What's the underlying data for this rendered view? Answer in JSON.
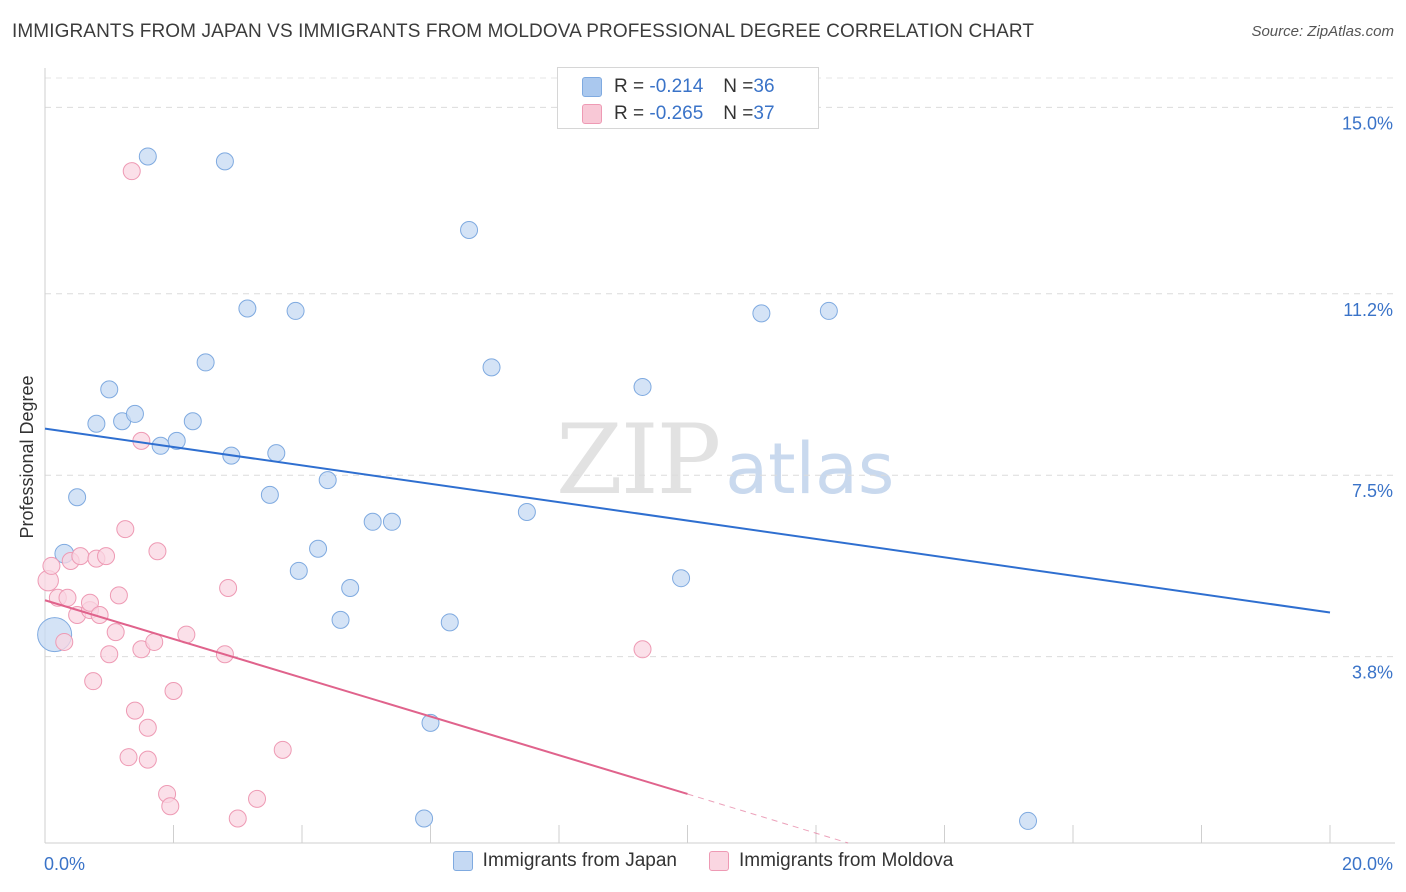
{
  "title": "IMMIGRANTS FROM JAPAN VS IMMIGRANTS FROM MOLDOVA PROFESSIONAL DEGREE CORRELATION CHART",
  "source": "Source: ZipAtlas.com",
  "watermark": {
    "zip": "ZIP",
    "atlas": "atlas"
  },
  "stats": [
    {
      "r_label": "R = ",
      "r_value": "-0.214",
      "n_label": "N = ",
      "n_value": "36",
      "color": "#aac8ee",
      "border": "#7faae0"
    },
    {
      "r_label": "R = ",
      "r_value": "-0.265",
      "n_label": "N = ",
      "n_value": "37",
      "color": "#f8c8d6",
      "border": "#ee9ab4"
    }
  ],
  "legend": [
    {
      "label": "Immigrants from Japan",
      "color": "#c5d9f3",
      "border": "#7faae0"
    },
    {
      "label": "Immigrants from Moldova",
      "color": "#fad6e1",
      "border": "#ee9ab4"
    }
  ],
  "chart_data": {
    "type": "scatter",
    "title": "IMMIGRANTS FROM JAPAN VS IMMIGRANTS FROM MOLDOVA PROFESSIONAL DEGREE CORRELATION CHART",
    "xlabel": "",
    "ylabel": "Professional Degree",
    "xlim": [
      0,
      20
    ],
    "ylim": [
      0,
      15.6
    ],
    "x_tick_labels": [
      "0.0%",
      "20.0%"
    ],
    "y_ticks": [
      3.8,
      7.5,
      11.2,
      15.0
    ],
    "y_tick_labels": [
      "3.8%",
      "7.5%",
      "11.2%",
      "15.0%"
    ],
    "grid": "horizontal dashed",
    "series": [
      {
        "name": "Immigrants from Japan",
        "color": "#c5d9f3",
        "stroke": "#7faae0",
        "line_color": "#2f6fd0",
        "trend": {
          "x": [
            0,
            20
          ],
          "y": [
            8.45,
            4.7
          ]
        },
        "points": [
          [
            0.15,
            4.25,
            2.0
          ],
          [
            0.3,
            5.9,
            1.1
          ],
          [
            0.5,
            7.05,
            1
          ],
          [
            0.8,
            8.55,
            1
          ],
          [
            1.0,
            9.25,
            1
          ],
          [
            1.2,
            8.6,
            1
          ],
          [
            1.4,
            8.75,
            1
          ],
          [
            1.6,
            14.0,
            1
          ],
          [
            1.8,
            8.1,
            1
          ],
          [
            2.05,
            8.2,
            1
          ],
          [
            2.3,
            8.6,
            1
          ],
          [
            2.5,
            9.8,
            1
          ],
          [
            2.8,
            13.9,
            1
          ],
          [
            2.9,
            7.9,
            1
          ],
          [
            3.15,
            10.9,
            1
          ],
          [
            3.5,
            7.1,
            1
          ],
          [
            3.6,
            7.95,
            1
          ],
          [
            3.9,
            10.85,
            1
          ],
          [
            3.95,
            5.55,
            1
          ],
          [
            4.25,
            6.0,
            1
          ],
          [
            4.4,
            7.4,
            1
          ],
          [
            4.6,
            4.55,
            1
          ],
          [
            4.75,
            5.2,
            1
          ],
          [
            5.1,
            6.55,
            1
          ],
          [
            5.4,
            6.55,
            1
          ],
          [
            5.9,
            0.5,
            1
          ],
          [
            6.3,
            4.5,
            1
          ],
          [
            6.6,
            12.5,
            1
          ],
          [
            6.95,
            9.7,
            1
          ],
          [
            7.5,
            6.75,
            1
          ],
          [
            9.3,
            9.3,
            1
          ],
          [
            9.9,
            5.4,
            1
          ],
          [
            11.15,
            10.8,
            1
          ],
          [
            12.2,
            10.85,
            1
          ],
          [
            15.3,
            0.45,
            1
          ],
          [
            6.0,
            2.45,
            1
          ]
        ]
      },
      {
        "name": "Immigrants from Moldova",
        "color": "#fad6e1",
        "stroke": "#ee9ab4",
        "line_color": "#e0638c",
        "trend": {
          "x": [
            0,
            10.0
          ],
          "y": [
            4.95,
            1.0
          ]
        },
        "trend_dashed": {
          "x": [
            10.0,
            12.5
          ],
          "y": [
            1.0,
            0.0
          ]
        },
        "points": [
          [
            0.05,
            5.35,
            1.2
          ],
          [
            0.1,
            5.65,
            1
          ],
          [
            0.2,
            5.0,
            1
          ],
          [
            0.3,
            4.1,
            1
          ],
          [
            0.35,
            5.0,
            1
          ],
          [
            0.4,
            5.75,
            1
          ],
          [
            0.5,
            4.65,
            1
          ],
          [
            0.55,
            5.85,
            1
          ],
          [
            0.7,
            4.75,
            1
          ],
          [
            0.7,
            4.9,
            1
          ],
          [
            0.75,
            3.3,
            1
          ],
          [
            0.8,
            5.8,
            1
          ],
          [
            0.85,
            4.65,
            1
          ],
          [
            0.95,
            5.85,
            1
          ],
          [
            1.0,
            3.85,
            1
          ],
          [
            1.1,
            4.3,
            1
          ],
          [
            1.15,
            5.05,
            1
          ],
          [
            1.25,
            6.4,
            1
          ],
          [
            1.3,
            1.75,
            1
          ],
          [
            1.4,
            2.7,
            1
          ],
          [
            1.5,
            8.2,
            1
          ],
          [
            1.5,
            3.95,
            1
          ],
          [
            1.6,
            2.35,
            1
          ],
          [
            1.7,
            4.1,
            1
          ],
          [
            1.75,
            5.95,
            1
          ],
          [
            1.9,
            1.0,
            1
          ],
          [
            1.95,
            0.75,
            1
          ],
          [
            2.2,
            4.25,
            1
          ],
          [
            2.8,
            3.85,
            1
          ],
          [
            2.85,
            5.2,
            1
          ],
          [
            3.0,
            0.5,
            1
          ],
          [
            3.3,
            0.9,
            1
          ],
          [
            3.7,
            1.9,
            1
          ],
          [
            9.3,
            3.95,
            1
          ],
          [
            1.35,
            13.7,
            1
          ],
          [
            1.6,
            1.7,
            1
          ],
          [
            2.0,
            3.1,
            1
          ]
        ]
      }
    ]
  }
}
